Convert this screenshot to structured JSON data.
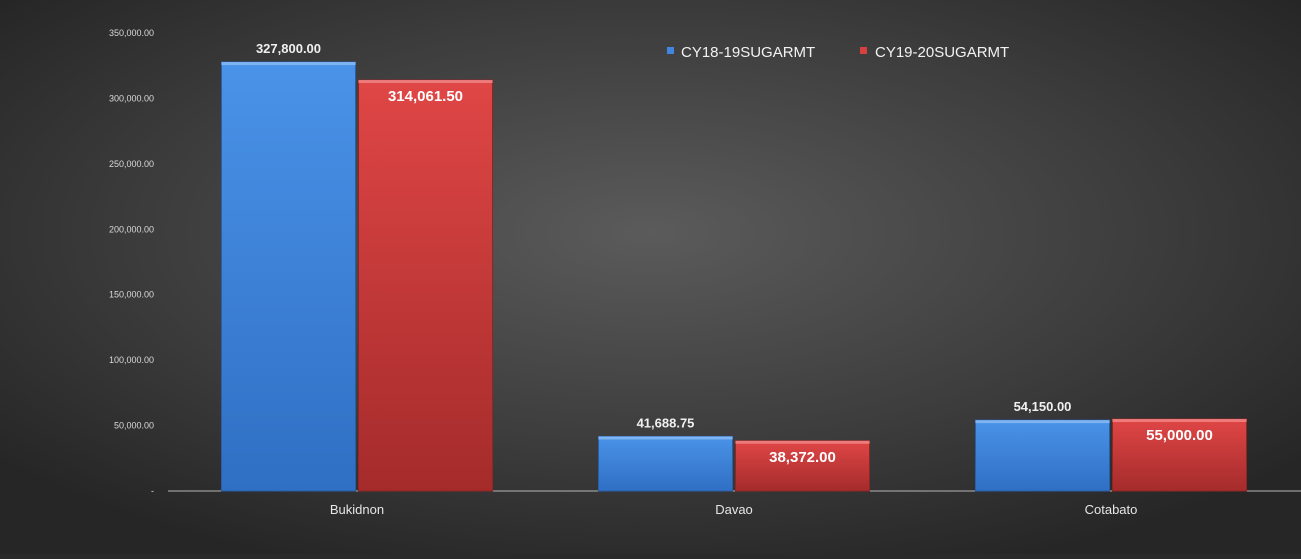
{
  "chart_data": {
    "type": "bar",
    "categories": [
      "Bukidnon",
      "Davao",
      "Cotabato"
    ],
    "series": [
      {
        "name": "CY18-19SUGARMT",
        "values": [
          327800.0,
          41688.75,
          54150.0
        ],
        "labels": [
          "327,800.00",
          "41,688.75",
          "54,150.00"
        ],
        "color": "#3f87de"
      },
      {
        "name": "CY19-20SUGARMT",
        "values": [
          314061.5,
          38372.0,
          55000.0
        ],
        "labels": [
          "314,061.50",
          "38,372.00",
          "55,000.00"
        ],
        "color": "#d84040"
      }
    ],
    "ylim": [
      0,
      350000
    ],
    "yticks": [
      {
        "value": 0,
        "label": "-"
      },
      {
        "value": 50000,
        "label": "50,000.00"
      },
      {
        "value": 100000,
        "label": "100,000.00"
      },
      {
        "value": 150000,
        "label": "150,000.00"
      },
      {
        "value": 200000,
        "label": "200,000.00"
      },
      {
        "value": 250000,
        "label": "250,000.00"
      },
      {
        "value": 300000,
        "label": "300,000.00"
      },
      {
        "value": 350000,
        "label": "350,000.00"
      }
    ],
    "grid": false,
    "legend_position": "top-right",
    "background": "#2a2a2a"
  }
}
